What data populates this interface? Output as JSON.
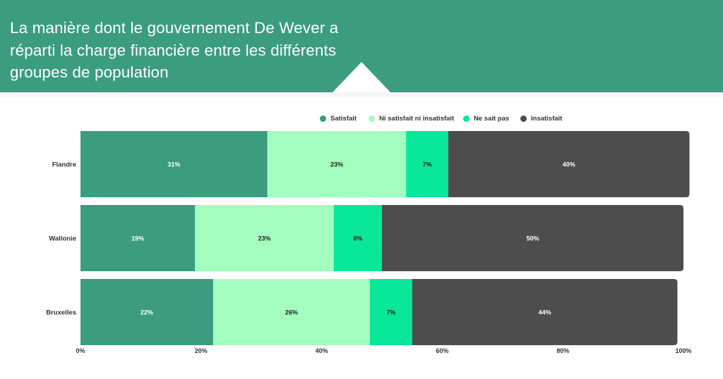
{
  "title": "La manière dont le gouvernement De Wever a réparti la charge financière entre les différents groupes de population",
  "colors": {
    "header": "#3b9c80",
    "satisfait": "#3b9c80",
    "ni": "#a2fdbe",
    "nsp": "#08e79a",
    "insatisfait": "#4d4d4d"
  },
  "chart_data": {
    "type": "bar",
    "orientation": "horizontal",
    "stacked": true,
    "categories": [
      "Flandre",
      "Wallonie",
      "Bruxelles"
    ],
    "series": [
      {
        "name": "Satisfait",
        "values": [
          31,
          19,
          22
        ],
        "color": "#3b9c80",
        "label_color": "#ffffff"
      },
      {
        "name": "Ni satisfait ni insatisfait",
        "values": [
          23,
          23,
          26
        ],
        "color": "#a2fdbe",
        "label_color": "#222222"
      },
      {
        "name": "Ne sait pas",
        "values": [
          7,
          8,
          7
        ],
        "color": "#08e79a",
        "label_color": "#222222"
      },
      {
        "name": "Insatisfait",
        "values": [
          40,
          50,
          44
        ],
        "color": "#4d4d4d",
        "label_color": "#ffffff"
      }
    ],
    "data_labels": [
      [
        "31%",
        "23%",
        "7%",
        "40%"
      ],
      [
        "19%",
        "23%",
        "8%",
        "50%"
      ],
      [
        "22%",
        "26%",
        "7%",
        "44%"
      ]
    ],
    "x_ticks": [
      "0%",
      "20%",
      "40%",
      "60%",
      "80%",
      "100%"
    ],
    "xlim": [
      0,
      100
    ],
    "grid": false,
    "legend_position": "top-right"
  }
}
